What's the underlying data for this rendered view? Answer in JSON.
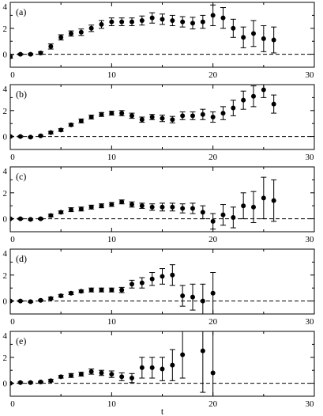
{
  "chart_data": [
    {
      "type": "scatter",
      "panel_label": "(a)",
      "xlim": [
        0,
        30
      ],
      "ylim": [
        -1,
        4
      ],
      "x_ticks": [
        0,
        10,
        20,
        30
      ],
      "y_ticks": [
        0,
        2,
        4
      ],
      "x_tick_labels": [
        "0",
        "10",
        "20",
        "30"
      ],
      "y_tick_labels": [
        "0",
        "2",
        "4"
      ],
      "reference_line": 0,
      "series": [
        {
          "x": [
            0,
            1,
            2,
            3,
            4,
            5,
            6,
            7,
            8,
            9,
            10,
            11,
            12,
            13,
            14,
            15,
            16,
            17,
            18,
            19,
            20,
            21,
            22,
            23,
            24,
            25,
            26
          ],
          "y": [
            -0.2,
            0.0,
            0.0,
            0.1,
            0.6,
            1.3,
            1.6,
            1.7,
            2.0,
            2.3,
            2.5,
            2.5,
            2.5,
            2.6,
            2.8,
            2.7,
            2.6,
            2.5,
            2.4,
            2.5,
            3.0,
            2.8,
            2.0,
            1.3,
            1.6,
            1.2,
            1.1
          ],
          "err": [
            0.1,
            0.05,
            0.05,
            0.1,
            0.2,
            0.2,
            0.2,
            0.25,
            0.25,
            0.3,
            0.3,
            0.3,
            0.3,
            0.35,
            0.4,
            0.4,
            0.4,
            0.4,
            0.45,
            0.5,
            0.8,
            0.8,
            0.7,
            0.8,
            1.0,
            1.0,
            1.0
          ]
        }
      ]
    },
    {
      "type": "scatter",
      "panel_label": "(b)",
      "xlim": [
        0,
        30
      ],
      "ylim": [
        -1,
        4
      ],
      "x_ticks": [
        0,
        10,
        20,
        30
      ],
      "y_ticks": [
        0,
        2,
        4
      ],
      "x_tick_labels": [
        "0",
        "10",
        "20",
        "30"
      ],
      "y_tick_labels": [
        "0",
        "2",
        "4"
      ],
      "reference_line": 0,
      "series": [
        {
          "x": [
            0,
            1,
            2,
            3,
            4,
            5,
            6,
            7,
            8,
            9,
            10,
            11,
            12,
            13,
            14,
            15,
            16,
            17,
            18,
            19,
            20,
            21,
            22,
            23,
            24,
            25,
            26
          ],
          "y": [
            0.0,
            0.0,
            -0.05,
            0.05,
            0.3,
            0.5,
            0.9,
            1.2,
            1.5,
            1.7,
            1.8,
            1.8,
            1.6,
            1.3,
            1.5,
            1.4,
            1.3,
            1.6,
            1.6,
            1.7,
            1.5,
            1.8,
            2.2,
            2.8,
            3.1,
            3.6,
            2.5
          ],
          "err": [
            0.05,
            0.05,
            0.05,
            0.05,
            0.1,
            0.1,
            0.1,
            0.15,
            0.15,
            0.15,
            0.15,
            0.2,
            0.2,
            0.2,
            0.2,
            0.25,
            0.25,
            0.3,
            0.3,
            0.4,
            0.4,
            0.5,
            0.6,
            0.7,
            0.8,
            0.6,
            0.7
          ]
        }
      ]
    },
    {
      "type": "scatter",
      "panel_label": "(c)",
      "xlim": [
        0,
        30
      ],
      "ylim": [
        -1,
        4
      ],
      "x_ticks": [
        0,
        10,
        20,
        30
      ],
      "y_ticks": [
        0,
        2,
        4
      ],
      "x_tick_labels": [
        "0",
        "10",
        "20",
        "30"
      ],
      "y_tick_labels": [
        "0",
        "2",
        "4"
      ],
      "reference_line": 0,
      "series": [
        {
          "x": [
            0,
            1,
            2,
            3,
            4,
            5,
            6,
            7,
            8,
            9,
            10,
            11,
            12,
            13,
            14,
            15,
            16,
            17,
            18,
            19,
            20,
            21,
            22,
            23,
            24,
            25,
            26
          ],
          "y": [
            0.0,
            0.0,
            -0.05,
            0.0,
            0.25,
            0.5,
            0.7,
            0.75,
            0.9,
            1.0,
            1.1,
            1.3,
            1.1,
            1.0,
            0.9,
            0.9,
            0.9,
            0.8,
            0.8,
            0.5,
            -0.2,
            0.3,
            0.1,
            1.0,
            0.9,
            1.6,
            1.4
          ],
          "err": [
            0.05,
            0.05,
            0.05,
            0.05,
            0.1,
            0.1,
            0.15,
            0.15,
            0.15,
            0.15,
            0.15,
            0.15,
            0.2,
            0.2,
            0.25,
            0.3,
            0.3,
            0.35,
            0.4,
            0.5,
            0.6,
            0.8,
            0.8,
            1.0,
            1.2,
            1.6,
            1.6
          ]
        }
      ]
    },
    {
      "type": "scatter",
      "panel_label": "(d)",
      "xlim": [
        0,
        30
      ],
      "ylim": [
        -1,
        4
      ],
      "x_ticks": [
        0,
        10,
        20,
        30
      ],
      "y_ticks": [
        0,
        2,
        4
      ],
      "x_tick_labels": [
        "0",
        "10",
        "20",
        "30"
      ],
      "y_tick_labels": [
        "0",
        "2",
        "4"
      ],
      "reference_line": 0,
      "series": [
        {
          "x": [
            0,
            1,
            2,
            3,
            4,
            5,
            6,
            7,
            8,
            9,
            10,
            11,
            12,
            13,
            14,
            15,
            16,
            17,
            18,
            19,
            20
          ],
          "y": [
            0.0,
            0.0,
            -0.05,
            0.05,
            0.2,
            0.4,
            0.6,
            0.75,
            0.85,
            0.85,
            0.85,
            0.85,
            1.3,
            1.4,
            1.7,
            1.9,
            2.0,
            0.4,
            0.3,
            0.0,
            0.6
          ],
          "err": [
            0.05,
            0.05,
            0.05,
            0.05,
            0.1,
            0.1,
            0.1,
            0.1,
            0.15,
            0.15,
            0.15,
            0.2,
            0.3,
            0.4,
            0.5,
            0.6,
            0.8,
            0.8,
            1.0,
            1.3,
            1.6
          ]
        }
      ]
    },
    {
      "type": "scatter",
      "panel_label": "(e)",
      "xlabel": "t",
      "xlim": [
        0,
        30
      ],
      "ylim": [
        -1,
        4
      ],
      "x_ticks": [
        0,
        10,
        20,
        30
      ],
      "y_ticks": [
        0,
        2,
        4
      ],
      "x_tick_labels": [
        "0",
        "10",
        "20",
        "30"
      ],
      "y_tick_labels": [
        "0",
        "2",
        "4"
      ],
      "reference_line": 0,
      "series": [
        {
          "x": [
            0,
            1,
            2,
            3,
            4,
            5,
            6,
            7,
            8,
            9,
            10,
            11,
            12,
            13,
            14,
            15,
            16,
            17,
            19,
            20
          ],
          "y": [
            0.0,
            0.05,
            0.05,
            0.1,
            0.2,
            0.5,
            0.6,
            0.7,
            0.9,
            0.8,
            0.7,
            0.5,
            0.4,
            1.2,
            1.2,
            1.1,
            1.4,
            2.2,
            2.5,
            0.8
          ],
          "err": [
            0.05,
            0.05,
            0.05,
            0.05,
            0.1,
            0.1,
            0.15,
            0.15,
            0.2,
            0.2,
            0.25,
            0.3,
            0.35,
            0.8,
            0.8,
            0.9,
            1.2,
            1.8,
            3.2,
            3.5
          ]
        }
      ]
    }
  ]
}
